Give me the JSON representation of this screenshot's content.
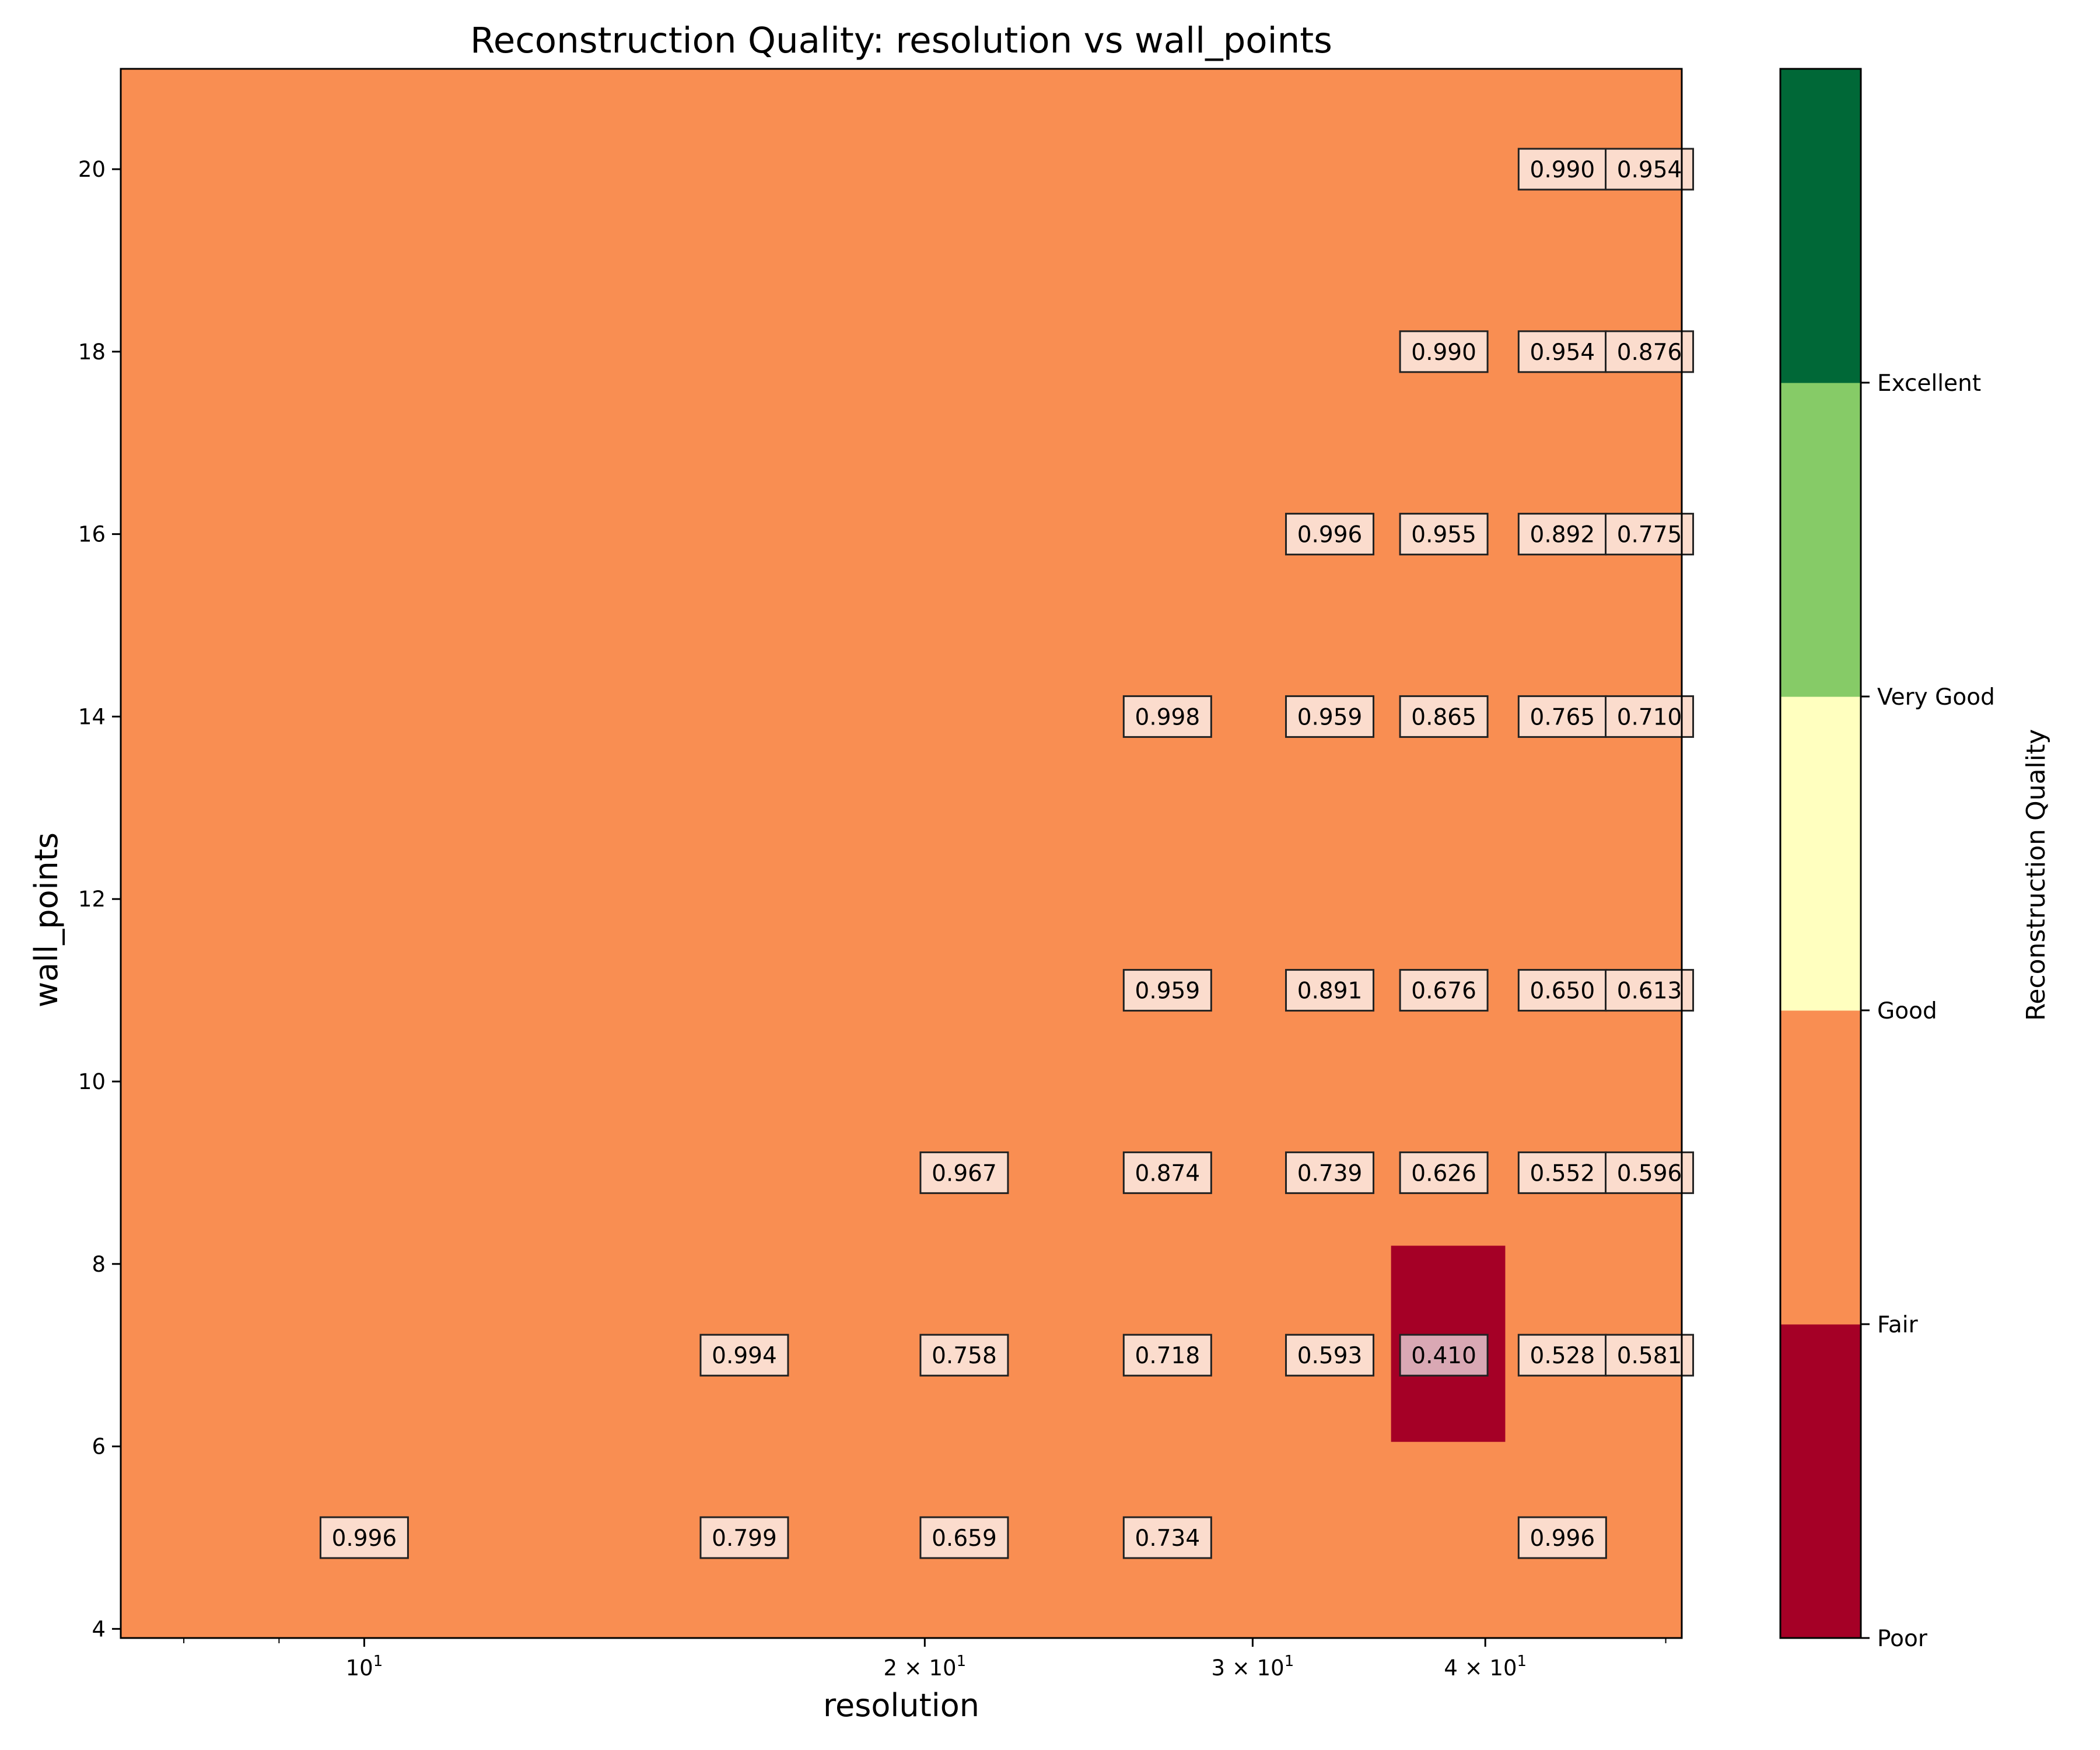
{
  "chart_data": {
    "type": "heatmap",
    "title": "Reconstruction Quality: resolution vs wall_points",
    "xlabel": "resolution",
    "ylabel": "wall_points",
    "x_scale": "log",
    "xlim": [
      7.4,
      51
    ],
    "ylim": [
      3.9,
      21.1
    ],
    "x_major_ticks": [
      {
        "value": 10,
        "label": "10",
        "exp": "1"
      },
      {
        "value": 20,
        "label": "2 × 10",
        "exp": "1"
      },
      {
        "value": 30,
        "label": "3 × 10",
        "exp": "1"
      },
      {
        "value": 40,
        "label": "4 × 10",
        "exp": "1"
      }
    ],
    "x_minor_ticks": [
      8,
      9,
      50
    ],
    "y_ticks": [
      {
        "value": 4,
        "label": "4"
      },
      {
        "value": 6,
        "label": "6"
      },
      {
        "value": 8,
        "label": "8"
      },
      {
        "value": 10,
        "label": "10"
      },
      {
        "value": 12,
        "label": "12"
      },
      {
        "value": 14,
        "label": "14"
      },
      {
        "value": 16,
        "label": "16"
      },
      {
        "value": 18,
        "label": "18"
      },
      {
        "value": 20,
        "label": "20"
      }
    ],
    "background_color": "#f98e52",
    "highlight_cell": {
      "x_range": [
        35.6,
        41
      ],
      "y_range": [
        6.05,
        8.2
      ],
      "color": "#a50026"
    },
    "cells": [
      {
        "x": 10,
        "y": 5,
        "value": 0.996,
        "label": "0.996"
      },
      {
        "x": 16,
        "y": 5,
        "value": 0.799,
        "label": "0.799"
      },
      {
        "x": 16,
        "y": 7,
        "value": 0.994,
        "label": "0.994"
      },
      {
        "x": 21,
        "y": 5,
        "value": 0.659,
        "label": "0.659"
      },
      {
        "x": 21,
        "y": 7,
        "value": 0.758,
        "label": "0.758"
      },
      {
        "x": 21,
        "y": 9,
        "value": 0.967,
        "label": "0.967"
      },
      {
        "x": 27,
        "y": 5,
        "value": 0.734,
        "label": "0.734"
      },
      {
        "x": 27,
        "y": 7,
        "value": 0.718,
        "label": "0.718"
      },
      {
        "x": 27,
        "y": 9,
        "value": 0.874,
        "label": "0.874"
      },
      {
        "x": 27,
        "y": 11,
        "value": 0.959,
        "label": "0.959"
      },
      {
        "x": 27,
        "y": 14,
        "value": 0.998,
        "label": "0.998"
      },
      {
        "x": 33,
        "y": 7,
        "value": 0.593,
        "label": "0.593"
      },
      {
        "x": 33,
        "y": 9,
        "value": 0.739,
        "label": "0.739"
      },
      {
        "x": 33,
        "y": 11,
        "value": 0.891,
        "label": "0.891"
      },
      {
        "x": 33,
        "y": 14,
        "value": 0.959,
        "label": "0.959"
      },
      {
        "x": 33,
        "y": 16,
        "value": 0.996,
        "label": "0.996"
      },
      {
        "x": 38,
        "y": 7,
        "value": 0.41,
        "label": "0.410"
      },
      {
        "x": 38,
        "y": 9,
        "value": 0.626,
        "label": "0.626"
      },
      {
        "x": 38,
        "y": 11,
        "value": 0.676,
        "label": "0.676"
      },
      {
        "x": 38,
        "y": 14,
        "value": 0.865,
        "label": "0.865"
      },
      {
        "x": 38,
        "y": 16,
        "value": 0.955,
        "label": "0.955"
      },
      {
        "x": 38,
        "y": 18,
        "value": 0.99,
        "label": "0.990"
      },
      {
        "x": 44,
        "y": 5,
        "value": 0.996,
        "label": "0.996"
      },
      {
        "x": 44,
        "y": 7,
        "value": 0.528,
        "label": "0.528"
      },
      {
        "x": 44,
        "y": 9,
        "value": 0.552,
        "label": "0.552"
      },
      {
        "x": 44,
        "y": 11,
        "value": 0.65,
        "label": "0.650"
      },
      {
        "x": 44,
        "y": 14,
        "value": 0.765,
        "label": "0.765"
      },
      {
        "x": 44,
        "y": 16,
        "value": 0.892,
        "label": "0.892"
      },
      {
        "x": 44,
        "y": 18,
        "value": 0.954,
        "label": "0.954"
      },
      {
        "x": 44,
        "y": 20,
        "value": 0.99,
        "label": "0.990"
      },
      {
        "x": 49,
        "y": 7,
        "value": 0.581,
        "label": "0.581"
      },
      {
        "x": 49,
        "y": 9,
        "value": 0.596,
        "label": "0.596"
      },
      {
        "x": 49,
        "y": 11,
        "value": 0.613,
        "label": "0.613"
      },
      {
        "x": 49,
        "y": 14,
        "value": 0.71,
        "label": "0.710"
      },
      {
        "x": 49,
        "y": 16,
        "value": 0.775,
        "label": "0.775"
      },
      {
        "x": 49,
        "y": 18,
        "value": 0.876,
        "label": "0.876"
      },
      {
        "x": 49,
        "y": 20,
        "value": 0.954,
        "label": "0.954"
      }
    ],
    "label_box_fill": "#fbdccd",
    "label_box_fill_highlight": "#d9a8b4",
    "colorbar": {
      "label": "Reconstruction Quality",
      "bands": [
        {
          "color": "#a50026"
        },
        {
          "color": "#f98e52"
        },
        {
          "color": "#ffffbf"
        },
        {
          "color": "#86cb67"
        },
        {
          "color": "#006837"
        }
      ],
      "tick_labels": [
        "Poor",
        "Fair",
        "Good",
        "Very Good",
        "Excellent"
      ]
    }
  }
}
